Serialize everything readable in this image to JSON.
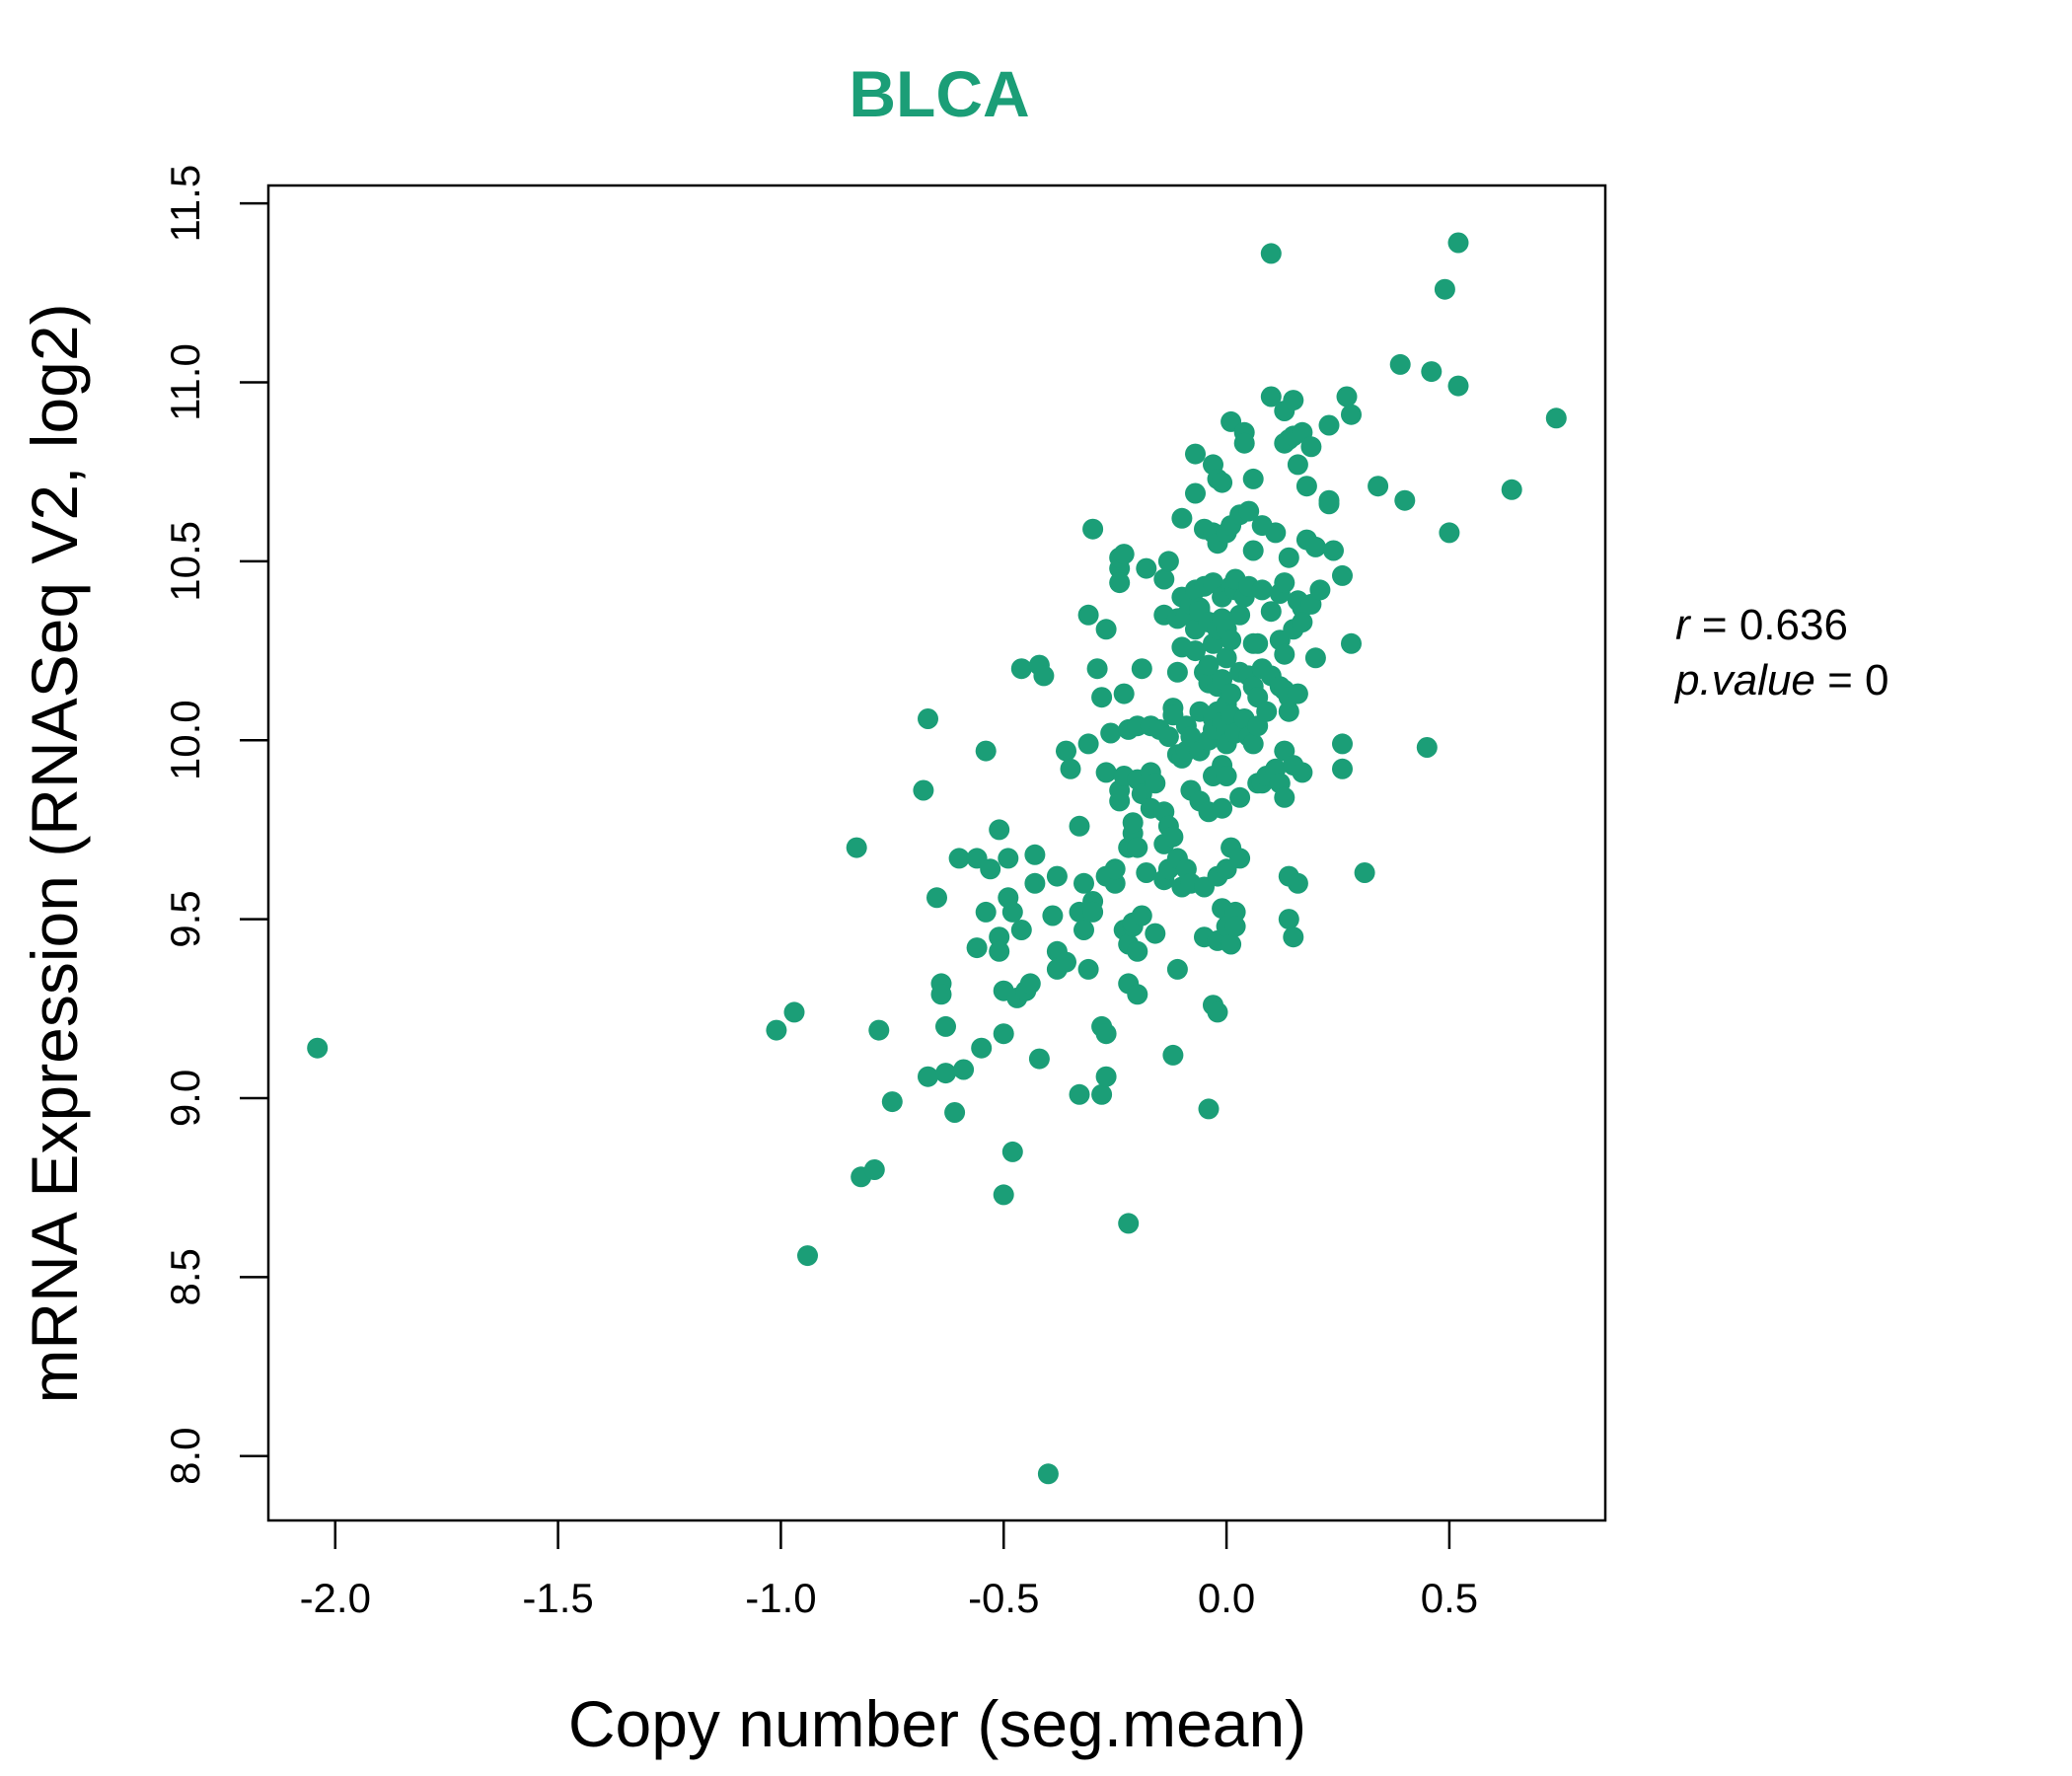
{
  "colors": {
    "accent": "#1b9e77",
    "axis": "#000000"
  },
  "chart_data": {
    "type": "scatter",
    "title": "BLCA",
    "xlabel": "Copy number (seg.mean)",
    "ylabel": "mRNA Expression (RNASeq V2, log2)",
    "xlim": [
      -2.15,
      0.85
    ],
    "ylim": [
      7.82,
      11.55
    ],
    "xticks": [
      -2.0,
      -1.5,
      -1.0,
      -0.5,
      0.0,
      0.5
    ],
    "xtick_labels": [
      "-2.0",
      "-1.5",
      "-1.0",
      "-0.5",
      "0.0",
      "0.5"
    ],
    "yticks": [
      8.0,
      8.5,
      9.0,
      9.5,
      10.0,
      10.5,
      11.0,
      11.5
    ],
    "ytick_labels": [
      "8.0",
      "8.5",
      "9.0",
      "9.5",
      "10.0",
      "10.5",
      "11.0",
      "11.5"
    ],
    "stats": {
      "r_label": "r",
      "r_value": "0.636",
      "p_label": "p.value",
      "p_value": "0"
    },
    "points": [
      [
        -2.04,
        9.14
      ],
      [
        -0.94,
        8.56
      ],
      [
        -1.01,
        9.19
      ],
      [
        -0.97,
        9.24
      ],
      [
        -0.82,
        8.78
      ],
      [
        -0.79,
        8.8
      ],
      [
        -0.83,
        9.7
      ],
      [
        -0.78,
        9.19
      ],
      [
        -0.75,
        8.99
      ],
      [
        -0.68,
        9.86
      ],
      [
        -0.67,
        10.06
      ],
      [
        -0.67,
        9.06
      ],
      [
        -0.65,
        9.56
      ],
      [
        -0.64,
        9.32
      ],
      [
        -0.64,
        9.29
      ],
      [
        -0.63,
        9.2
      ],
      [
        -0.63,
        9.07
      ],
      [
        -0.61,
        8.96
      ],
      [
        -0.6,
        9.67
      ],
      [
        -0.59,
        9.08
      ],
      [
        -0.56,
        9.67
      ],
      [
        -0.56,
        9.42
      ],
      [
        -0.55,
        9.14
      ],
      [
        -0.54,
        9.52
      ],
      [
        -0.54,
        9.97
      ],
      [
        -0.53,
        9.64
      ],
      [
        -0.51,
        9.75
      ],
      [
        -0.51,
        9.45
      ],
      [
        -0.51,
        9.41
      ],
      [
        -0.5,
        9.3
      ],
      [
        -0.5,
        9.18
      ],
      [
        -0.5,
        8.73
      ],
      [
        -0.49,
        9.56
      ],
      [
        -0.49,
        9.67
      ],
      [
        -0.48,
        9.52
      ],
      [
        -0.48,
        8.85
      ],
      [
        -0.47,
        9.28
      ],
      [
        -0.46,
        10.2
      ],
      [
        -0.46,
        9.47
      ],
      [
        -0.45,
        9.3
      ],
      [
        -0.44,
        9.32
      ],
      [
        -0.43,
        9.6
      ],
      [
        -0.43,
        9.68
      ],
      [
        -0.42,
        10.21
      ],
      [
        -0.42,
        9.11
      ],
      [
        -0.41,
        10.18
      ],
      [
        -0.4,
        7.95
      ],
      [
        -0.39,
        9.51
      ],
      [
        -0.38,
        9.62
      ],
      [
        -0.38,
        9.41
      ],
      [
        -0.38,
        9.36
      ],
      [
        -0.36,
        9.38
      ],
      [
        -0.36,
        9.97
      ],
      [
        -0.35,
        9.92
      ],
      [
        -0.33,
        9.76
      ],
      [
        -0.33,
        9.52
      ],
      [
        -0.33,
        9.01
      ],
      [
        -0.32,
        9.47
      ],
      [
        -0.32,
        9.6
      ],
      [
        -0.31,
        9.36
      ],
      [
        -0.31,
        10.35
      ],
      [
        -0.31,
        9.99
      ],
      [
        -0.3,
        9.55
      ],
      [
        -0.3,
        9.52
      ],
      [
        -0.3,
        10.59
      ],
      [
        -0.29,
        10.2
      ],
      [
        -0.28,
        10.12
      ],
      [
        -0.28,
        9.01
      ],
      [
        -0.28,
        9.2
      ],
      [
        -0.27,
        9.18
      ],
      [
        -0.27,
        9.62
      ],
      [
        -0.27,
        9.06
      ],
      [
        -0.27,
        10.31
      ],
      [
        -0.27,
        9.91
      ],
      [
        -0.26,
        10.02
      ],
      [
        -0.25,
        9.6
      ],
      [
        -0.25,
        9.64
      ],
      [
        -0.24,
        10.48
      ],
      [
        -0.24,
        10.44
      ],
      [
        -0.24,
        10.51
      ],
      [
        -0.24,
        9.83
      ],
      [
        -0.24,
        9.86
      ],
      [
        -0.23,
        10.52
      ],
      [
        -0.23,
        9.47
      ],
      [
        -0.23,
        10.13
      ],
      [
        -0.23,
        9.9
      ],
      [
        -0.22,
        9.32
      ],
      [
        -0.22,
        8.65
      ],
      [
        -0.22,
        9.7
      ],
      [
        -0.22,
        10.03
      ],
      [
        -0.22,
        9.43
      ],
      [
        -0.21,
        9.48
      ],
      [
        -0.21,
        9.74
      ],
      [
        -0.21,
        9.77
      ],
      [
        -0.21,
        9.49
      ],
      [
        -0.2,
        9.29
      ],
      [
        -0.2,
        9.89
      ],
      [
        -0.2,
        9.41
      ],
      [
        -0.2,
        9.7
      ],
      [
        -0.2,
        10.04
      ],
      [
        -0.19,
        10.2
      ],
      [
        -0.19,
        9.51
      ],
      [
        -0.19,
        9.85
      ],
      [
        -0.18,
        10.48
      ],
      [
        -0.18,
        9.63
      ],
      [
        -0.17,
        10.04
      ],
      [
        -0.17,
        9.81
      ],
      [
        -0.17,
        9.91
      ],
      [
        -0.16,
        9.46
      ],
      [
        -0.16,
        9.88
      ],
      [
        -0.15,
        10.03
      ],
      [
        -0.14,
        9.8
      ],
      [
        -0.14,
        9.61
      ],
      [
        -0.14,
        10.45
      ],
      [
        -0.14,
        10.35
      ],
      [
        -0.14,
        9.71
      ],
      [
        -0.13,
        10.01
      ],
      [
        -0.13,
        9.76
      ],
      [
        -0.13,
        10.5
      ],
      [
        -0.13,
        9.64
      ],
      [
        -0.12,
        9.73
      ],
      [
        -0.12,
        10.09
      ],
      [
        -0.12,
        10.07
      ],
      [
        -0.12,
        9.12
      ],
      [
        -0.11,
        9.36
      ],
      [
        -0.11,
        10.19
      ],
      [
        -0.11,
        10.34
      ],
      [
        -0.11,
        9.67
      ],
      [
        -0.11,
        9.96
      ],
      [
        -0.1,
        10.62
      ],
      [
        -0.1,
        9.95
      ],
      [
        -0.1,
        10.26
      ],
      [
        -0.1,
        10.4
      ],
      [
        -0.1,
        9.59
      ],
      [
        -0.09,
        10.35
      ],
      [
        -0.09,
        10.04
      ],
      [
        -0.09,
        9.97
      ],
      [
        -0.09,
        9.64
      ],
      [
        -0.08,
        10.01
      ],
      [
        -0.08,
        10.38
      ],
      [
        -0.08,
        9.86
      ],
      [
        -0.08,
        9.6
      ],
      [
        -0.07,
        10.8
      ],
      [
        -0.07,
        10.69
      ],
      [
        -0.07,
        10.31
      ],
      [
        -0.07,
        10.42
      ],
      [
        -0.07,
        10.25
      ],
      [
        -0.06,
        9.97
      ],
      [
        -0.06,
        10.37
      ],
      [
        -0.06,
        10.36
      ],
      [
        -0.06,
        10.08
      ],
      [
        -0.06,
        9.83
      ],
      [
        -0.05,
        10.43
      ],
      [
        -0.05,
        10.59
      ],
      [
        -0.05,
        9.59
      ],
      [
        -0.05,
        9.45
      ],
      [
        -0.05,
        10.19
      ],
      [
        -0.04,
        10.16
      ],
      [
        -0.04,
        10.33
      ],
      [
        -0.04,
        10.21
      ],
      [
        -0.04,
        8.97
      ],
      [
        -0.04,
        9.8
      ],
      [
        -0.04,
        10.0
      ],
      [
        -0.03,
        10.58
      ],
      [
        -0.03,
        10.44
      ],
      [
        -0.03,
        10.06
      ],
      [
        -0.03,
        10.03
      ],
      [
        -0.03,
        9.26
      ],
      [
        -0.03,
        10.77
      ],
      [
        -0.03,
        9.9
      ],
      [
        -0.03,
        10.27
      ],
      [
        -0.02,
        9.62
      ],
      [
        -0.02,
        10.08
      ],
      [
        -0.02,
        10.55
      ],
      [
        -0.02,
        9.24
      ],
      [
        -0.02,
        10.31
      ],
      [
        -0.02,
        10.15
      ],
      [
        -0.02,
        10.73
      ],
      [
        -0.02,
        9.44
      ],
      [
        -0.01,
        9.81
      ],
      [
        -0.01,
        9.53
      ],
      [
        -0.01,
        10.05
      ],
      [
        -0.01,
        10.34
      ],
      [
        -0.01,
        10.72
      ],
      [
        -0.01,
        10.4
      ],
      [
        -0.01,
        9.93
      ],
      [
        -0.01,
        10.17
      ],
      [
        -0.0,
        10.1
      ],
      [
        -0.0,
        10.03
      ],
      [
        -0.0,
        10.58
      ],
      [
        -0.0,
        9.48
      ],
      [
        0.0,
        9.99
      ],
      [
        0.0,
        10.31
      ],
      [
        0.0,
        9.9
      ],
      [
        0.0,
        9.64
      ],
      [
        0.0,
        10.23
      ],
      [
        0.01,
        10.89
      ],
      [
        0.01,
        10.07
      ],
      [
        0.01,
        10.43
      ],
      [
        0.01,
        9.7
      ],
      [
        0.01,
        10.13
      ],
      [
        0.01,
        9.43
      ],
      [
        0.01,
        10.6
      ],
      [
        0.01,
        10.28
      ],
      [
        0.02,
        10.42
      ],
      [
        0.02,
        9.52
      ],
      [
        0.02,
        10.02
      ],
      [
        0.02,
        9.48
      ],
      [
        0.02,
        10.45
      ],
      [
        0.03,
        9.84
      ],
      [
        0.03,
        10.63
      ],
      [
        0.03,
        10.19
      ],
      [
        0.03,
        9.67
      ],
      [
        0.03,
        10.35
      ],
      [
        0.04,
        10.86
      ],
      [
        0.04,
        10.06
      ],
      [
        0.04,
        10.83
      ],
      [
        0.04,
        10.4
      ],
      [
        0.05,
        10.18
      ],
      [
        0.05,
        10.01
      ],
      [
        0.05,
        10.64
      ],
      [
        0.05,
        10.43
      ],
      [
        0.06,
        10.15
      ],
      [
        0.06,
        10.27
      ],
      [
        0.06,
        10.53
      ],
      [
        0.06,
        10.73
      ],
      [
        0.06,
        9.99
      ],
      [
        0.07,
        10.27
      ],
      [
        0.07,
        10.12
      ],
      [
        0.07,
        9.88
      ],
      [
        0.07,
        10.04
      ],
      [
        0.08,
        10.42
      ],
      [
        0.08,
        10.2
      ],
      [
        0.08,
        10.6
      ],
      [
        0.08,
        9.88
      ],
      [
        0.09,
        9.9
      ],
      [
        0.09,
        10.08
      ],
      [
        0.1,
        11.36
      ],
      [
        0.1,
        10.96
      ],
      [
        0.1,
        10.36
      ],
      [
        0.1,
        10.18
      ],
      [
        0.11,
        10.58
      ],
      [
        0.11,
        9.92
      ],
      [
        0.12,
        10.41
      ],
      [
        0.12,
        10.15
      ],
      [
        0.12,
        10.28
      ],
      [
        0.12,
        9.88
      ],
      [
        0.13,
        10.83
      ],
      [
        0.13,
        10.92
      ],
      [
        0.13,
        10.24
      ],
      [
        0.13,
        10.14
      ],
      [
        0.13,
        9.97
      ],
      [
        0.13,
        9.84
      ],
      [
        0.13,
        10.44
      ],
      [
        0.14,
        10.51
      ],
      [
        0.14,
        10.84
      ],
      [
        0.14,
        9.5
      ],
      [
        0.14,
        10.08
      ],
      [
        0.14,
        10.12
      ],
      [
        0.14,
        9.62
      ],
      [
        0.15,
        10.95
      ],
      [
        0.15,
        9.45
      ],
      [
        0.15,
        10.31
      ],
      [
        0.15,
        10.85
      ],
      [
        0.15,
        9.93
      ],
      [
        0.16,
        10.39
      ],
      [
        0.16,
        9.6
      ],
      [
        0.16,
        10.13
      ],
      [
        0.16,
        10.77
      ],
      [
        0.17,
        10.37
      ],
      [
        0.17,
        9.91
      ],
      [
        0.17,
        10.33
      ],
      [
        0.17,
        10.86
      ],
      [
        0.18,
        10.71
      ],
      [
        0.18,
        10.56
      ],
      [
        0.19,
        10.82
      ],
      [
        0.19,
        10.38
      ],
      [
        0.2,
        10.54
      ],
      [
        0.2,
        10.23
      ],
      [
        0.21,
        10.42
      ],
      [
        0.23,
        10.66
      ],
      [
        0.23,
        10.67
      ],
      [
        0.23,
        10.88
      ],
      [
        0.24,
        10.53
      ],
      [
        0.26,
        10.46
      ],
      [
        0.26,
        9.99
      ],
      [
        0.26,
        9.92
      ],
      [
        0.27,
        10.96
      ],
      [
        0.28,
        10.27
      ],
      [
        0.28,
        10.91
      ],
      [
        0.31,
        9.63
      ],
      [
        0.34,
        10.71
      ],
      [
        0.39,
        11.05
      ],
      [
        0.4,
        10.67
      ],
      [
        0.45,
        9.98
      ],
      [
        0.46,
        11.03
      ],
      [
        0.49,
        11.26
      ],
      [
        0.5,
        10.58
      ],
      [
        0.52,
        10.99
      ],
      [
        0.52,
        11.39
      ],
      [
        0.64,
        10.7
      ],
      [
        0.74,
        10.9
      ]
    ]
  }
}
